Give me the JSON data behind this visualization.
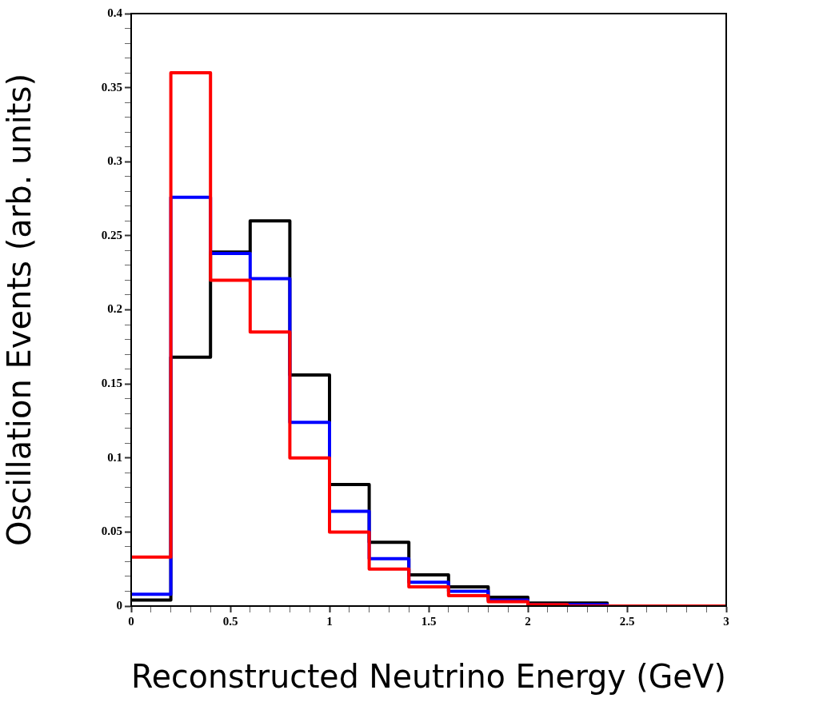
{
  "chart_data": {
    "type": "histogram",
    "xlabel": "Reconstructed Neutrino Energy (GeV)",
    "ylabel": "Oscillation Events (arb. units)",
    "bins": [
      0,
      0.2,
      0.4,
      0.6,
      0.8,
      1,
      1.2,
      1.4,
      1.6,
      1.8,
      2,
      2.2,
      2.4,
      2.6,
      2.8,
      3
    ],
    "series": [
      {
        "color": "#ff0000",
        "values": [
          0.033,
          0.36,
          0.22,
          0.185,
          0.1,
          0.05,
          0.025,
          0.013,
          0.007,
          0.003,
          0.001,
          0,
          0,
          0,
          0
        ]
      },
      {
        "color": "#0000ff",
        "values": [
          0.008,
          0.276,
          0.238,
          0.221,
          0.124,
          0.064,
          0.032,
          0.016,
          0.01,
          0.004,
          0.001,
          0.001,
          0,
          0,
          0
        ]
      },
      {
        "color": "#000000",
        "values": [
          0.004,
          0.168,
          0.239,
          0.26,
          0.156,
          0.082,
          0.043,
          0.021,
          0.013,
          0.006,
          0.002,
          0.002,
          0,
          0,
          0
        ]
      }
    ],
    "xlim": [
      0,
      3
    ],
    "ylim": [
      0,
      0.4
    ],
    "xticks": [
      0,
      {
        "value": 0.1,
        "label": null
      },
      {
        "value": 0.2,
        "label": null
      },
      {
        "value": 0.3,
        "label": null
      },
      {
        "value": 0.4,
        "label": null
      },
      0.5,
      {
        "value": 0.6,
        "label": null
      },
      {
        "value": 0.7,
        "label": null
      },
      {
        "value": 0.8,
        "label": null
      },
      {
        "value": 0.9,
        "label": null
      },
      1,
      {
        "value": 1.1,
        "label": null
      },
      {
        "value": 1.2,
        "label": null
      },
      {
        "value": 1.3,
        "label": null
      },
      {
        "value": 1.4,
        "label": null
      },
      1.5,
      {
        "value": 1.6,
        "label": null
      },
      {
        "value": 1.7,
        "label": null
      },
      {
        "value": 1.8,
        "label": null
      },
      {
        "value": 1.9,
        "label": null
      },
      2,
      {
        "value": 2.1,
        "label": null
      },
      {
        "value": 2.2,
        "label": null
      },
      {
        "value": 2.3,
        "label": null
      },
      {
        "value": 2.4,
        "label": null
      },
      2.5,
      {
        "value": 2.6,
        "label": null
      },
      {
        "value": 2.7,
        "label": null
      },
      {
        "value": 2.8,
        "label": null
      },
      {
        "value": 2.9,
        "label": null
      },
      3
    ],
    "yticks": [
      0,
      {
        "value": 0.01,
        "label": null
      },
      {
        "value": 0.02,
        "label": null
      },
      {
        "value": 0.03,
        "label": null
      },
      {
        "value": 0.04,
        "label": null
      },
      0.05,
      {
        "value": 0.06,
        "label": null
      },
      {
        "value": 0.07,
        "label": null
      },
      {
        "value": 0.08,
        "label": null
      },
      {
        "value": 0.09,
        "label": null
      },
      0.1,
      {
        "value": 0.11,
        "label": null
      },
      {
        "value": 0.12,
        "label": null
      },
      {
        "value": 0.13,
        "label": null
      },
      {
        "value": 0.14,
        "label": null
      },
      0.15,
      {
        "value": 0.16,
        "label": null
      },
      {
        "value": 0.17,
        "label": null
      },
      {
        "value": 0.18,
        "label": null
      },
      {
        "value": 0.19,
        "label": null
      },
      0.2,
      {
        "value": 0.21,
        "label": null
      },
      {
        "value": 0.22,
        "label": null
      },
      {
        "value": 0.23,
        "label": null
      },
      {
        "value": 0.24,
        "label": null
      },
      0.25,
      {
        "value": 0.26,
        "label": null
      },
      {
        "value": 0.27,
        "label": null
      },
      {
        "value": 0.28,
        "label": null
      },
      {
        "value": 0.29,
        "label": null
      },
      0.3,
      {
        "value": 0.31,
        "label": null
      },
      {
        "value": 0.32,
        "label": null
      },
      {
        "value": 0.33,
        "label": null
      },
      {
        "value": 0.34,
        "label": null
      },
      0.35,
      {
        "value": 0.36,
        "label": null
      },
      {
        "value": 0.37,
        "label": null
      },
      {
        "value": 0.38,
        "label": null
      },
      {
        "value": 0.39,
        "label": null
      },
      0.4
    ],
    "grid": false,
    "legend": false
  }
}
